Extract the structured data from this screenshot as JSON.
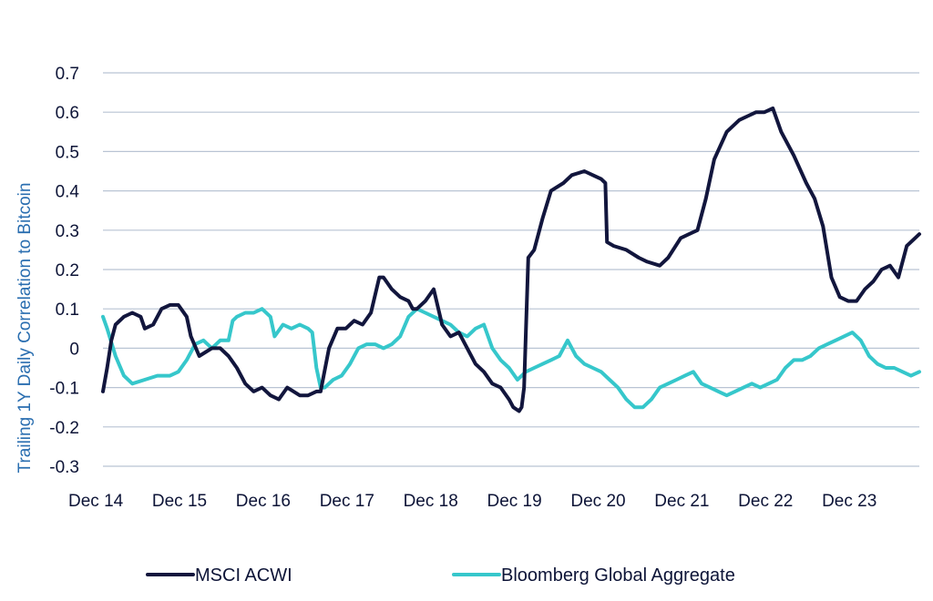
{
  "chart_data": {
    "type": "line",
    "title": "",
    "xlabel": "",
    "ylabel": "Trailing 1Y Daily Correlation to Bitcoin",
    "ylim": [
      -0.3,
      0.7
    ],
    "yticks": [
      0.7,
      0.6,
      0.5,
      0.4,
      0.3,
      0.2,
      0.1,
      0,
      -0.1,
      -0.2,
      -0.3
    ],
    "ytick_labels": [
      "0.7",
      "0.6",
      "0.5",
      "0.4",
      "0.3",
      "0.2",
      "0.1",
      "0",
      "-0.1",
      "-0.2",
      "-0.3"
    ],
    "xlim": [
      2014.95,
      2024.7
    ],
    "xticks": [
      2014.95,
      2015.95,
      2016.95,
      2017.95,
      2018.95,
      2019.95,
      2020.95,
      2021.95,
      2022.95,
      2023.95
    ],
    "xtick_labels": [
      "Dec 14",
      "Dec 15",
      "Dec 16",
      "Dec 17",
      "Dec 18",
      "Dec 19",
      "Dec 20",
      "Dec 21",
      "Dec 22",
      "Dec 23"
    ],
    "grid": true,
    "legend_position": "bottom",
    "series": [
      {
        "name": "MSCI ACWI",
        "color": "#12163d",
        "x": [
          2014.95,
          2015.0,
          2015.05,
          2015.1,
          2015.2,
          2015.3,
          2015.4,
          2015.45,
          2015.55,
          2015.65,
          2015.75,
          2015.85,
          2015.95,
          2016.0,
          2016.1,
          2016.25,
          2016.35,
          2016.45,
          2016.55,
          2016.65,
          2016.75,
          2016.85,
          2016.95,
          2017.05,
          2017.15,
          2017.3,
          2017.4,
          2017.5,
          2017.55,
          2017.65,
          2017.75,
          2017.85,
          2017.9,
          2017.95,
          2018.05,
          2018.15,
          2018.25,
          2018.3,
          2018.4,
          2018.5,
          2018.6,
          2018.65,
          2018.7,
          2018.8,
          2018.9,
          2019.0,
          2019.1,
          2019.2,
          2019.3,
          2019.4,
          2019.5,
          2019.6,
          2019.7,
          2019.8,
          2019.85,
          2019.92,
          2019.95,
          2019.98,
          2020.03,
          2020.1,
          2020.2,
          2020.3,
          2020.45,
          2020.55,
          2020.7,
          2020.8,
          2020.9,
          2020.95,
          2020.97,
          2021.05,
          2021.2,
          2021.35,
          2021.45,
          2021.6,
          2021.7,
          2021.85,
          2021.95,
          2022.05,
          2022.15,
          2022.25,
          2022.4,
          2022.55,
          2022.65,
          2022.75,
          2022.85,
          2022.95,
          2023.05,
          2023.2,
          2023.35,
          2023.45,
          2023.55,
          2023.65,
          2023.75,
          2023.85,
          2023.95,
          2024.05,
          2024.15,
          2024.25,
          2024.35,
          2024.45,
          2024.55,
          2024.65,
          2024.7
        ],
        "y": [
          -0.11,
          -0.05,
          0.02,
          0.06,
          0.08,
          0.09,
          0.08,
          0.05,
          0.06,
          0.1,
          0.11,
          0.11,
          0.08,
          0.03,
          -0.02,
          0.0,
          0.0,
          -0.02,
          -0.05,
          -0.09,
          -0.11,
          -0.1,
          -0.12,
          -0.13,
          -0.1,
          -0.12,
          -0.12,
          -0.11,
          -0.11,
          0.0,
          0.05,
          0.05,
          0.06,
          0.07,
          0.06,
          0.09,
          0.18,
          0.18,
          0.15,
          0.13,
          0.12,
          0.1,
          0.1,
          0.12,
          0.15,
          0.06,
          0.03,
          0.04,
          0.0,
          -0.04,
          -0.06,
          -0.09,
          -0.1,
          -0.13,
          -0.15,
          -0.16,
          -0.15,
          -0.1,
          0.23,
          0.25,
          0.33,
          0.4,
          0.42,
          0.44,
          0.45,
          0.44,
          0.43,
          0.42,
          0.27,
          0.26,
          0.25,
          0.23,
          0.22,
          0.21,
          0.23,
          0.28,
          0.29,
          0.3,
          0.38,
          0.48,
          0.55,
          0.58,
          0.59,
          0.6,
          0.6,
          0.61,
          0.55,
          0.49,
          0.42,
          0.38,
          0.31,
          0.18,
          0.13,
          0.12,
          0.12,
          0.15,
          0.17,
          0.2,
          0.21,
          0.18,
          0.26,
          0.28,
          0.29
        ]
      },
      {
        "name": "Bloomberg Global Aggregate",
        "color": "#36c7cb",
        "x": [
          2014.95,
          2015.0,
          2015.1,
          2015.2,
          2015.3,
          2015.45,
          2015.6,
          2015.75,
          2015.85,
          2015.95,
          2016.05,
          2016.15,
          2016.25,
          2016.35,
          2016.45,
          2016.5,
          2016.55,
          2016.65,
          2016.75,
          2016.85,
          2016.95,
          2017.0,
          2017.1,
          2017.2,
          2017.3,
          2017.4,
          2017.45,
          2017.5,
          2017.55,
          2017.6,
          2017.7,
          2017.8,
          2017.9,
          2018.0,
          2018.1,
          2018.2,
          2018.3,
          2018.4,
          2018.5,
          2018.6,
          2018.7,
          2018.8,
          2018.9,
          2019.0,
          2019.1,
          2019.2,
          2019.3,
          2019.4,
          2019.5,
          2019.6,
          2019.7,
          2019.8,
          2019.9,
          2020.0,
          2020.1,
          2020.2,
          2020.3,
          2020.4,
          2020.5,
          2020.6,
          2020.7,
          2020.8,
          2020.9,
          2021.0,
          2021.1,
          2021.2,
          2021.3,
          2021.4,
          2021.5,
          2021.6,
          2021.7,
          2021.8,
          2021.9,
          2022.0,
          2022.1,
          2022.2,
          2022.3,
          2022.4,
          2022.5,
          2022.6,
          2022.7,
          2022.8,
          2022.9,
          2023.0,
          2023.1,
          2023.2,
          2023.3,
          2023.4,
          2023.5,
          2023.6,
          2023.7,
          2023.8,
          2023.9,
          2024.0,
          2024.1,
          2024.2,
          2024.3,
          2024.4,
          2024.5,
          2024.6,
          2024.7
        ],
        "y": [
          0.08,
          0.05,
          -0.02,
          -0.07,
          -0.09,
          -0.08,
          -0.07,
          -0.07,
          -0.06,
          -0.03,
          0.01,
          0.02,
          0.0,
          0.02,
          0.02,
          0.07,
          0.08,
          0.09,
          0.09,
          0.1,
          0.08,
          0.03,
          0.06,
          0.05,
          0.06,
          0.05,
          0.04,
          -0.05,
          -0.1,
          -0.1,
          -0.08,
          -0.07,
          -0.04,
          0.0,
          0.01,
          0.01,
          0.0,
          0.01,
          0.03,
          0.08,
          0.1,
          0.09,
          0.08,
          0.07,
          0.06,
          0.04,
          0.03,
          0.05,
          0.06,
          0.0,
          -0.03,
          -0.05,
          -0.08,
          -0.06,
          -0.05,
          -0.04,
          -0.03,
          -0.02,
          0.02,
          -0.02,
          -0.04,
          -0.05,
          -0.06,
          -0.08,
          -0.1,
          -0.13,
          -0.15,
          -0.15,
          -0.13,
          -0.1,
          -0.09,
          -0.08,
          -0.07,
          -0.06,
          -0.09,
          -0.1,
          -0.11,
          -0.12,
          -0.11,
          -0.1,
          -0.09,
          -0.1,
          -0.09,
          -0.08,
          -0.05,
          -0.03,
          -0.03,
          -0.02,
          0.0,
          0.01,
          0.02,
          0.03,
          0.04,
          0.02,
          -0.02,
          -0.04,
          -0.05,
          -0.05,
          -0.06,
          -0.07,
          -0.06
        ]
      }
    ]
  }
}
